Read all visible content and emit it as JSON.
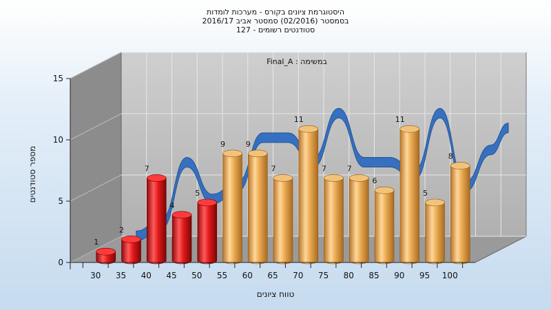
{
  "chart_data": {
    "type": "bar",
    "title_lines": [
      "היסטוגרמת ציונים בקורס - מערכות לומדות",
      "בסמסטר  (02/2016)  סמסטר אביב 2016/17",
      "סטודנטים רשומים - 127"
    ],
    "series_label": "במשימה : Final_A",
    "xlabel": "טווח ציונים",
    "ylabel": "מספר סטודנטים",
    "categories": [
      "30",
      "35",
      "40",
      "45",
      "50",
      "55",
      "60",
      "65",
      "70",
      "75",
      "80",
      "85",
      "90",
      "95",
      "100"
    ],
    "values": [
      1,
      2,
      7,
      4,
      5,
      9,
      9,
      7,
      11,
      7,
      7,
      6,
      11,
      5,
      8
    ],
    "y_ticks": [
      0,
      5,
      10,
      15
    ],
    "ylim": [
      0,
      15
    ],
    "colors": {
      "fail": "#e02020",
      "pass": "#e8a850",
      "ribbon": "#2f6cc0",
      "back_wall": "#b8b8b8",
      "side_wall": "#8c8c8c",
      "floor": "#9a9a9a"
    },
    "fail_threshold_category_count": 5
  }
}
